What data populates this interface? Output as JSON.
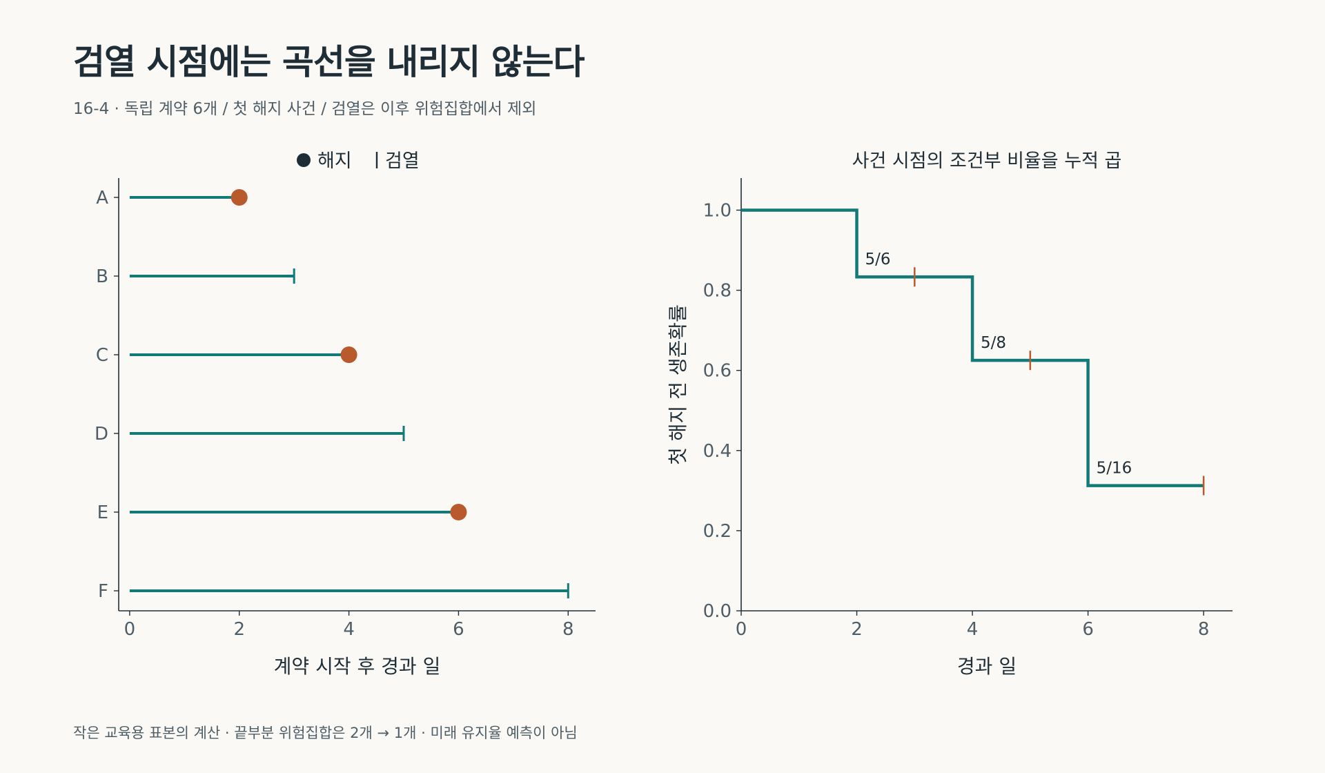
{
  "title": "검열 시점에는 곡선을 내리지 않는다",
  "subtitle": "16-4 · 독립 계약 6개 / 첫 해지 사건 / 검열은 이후 위험집합에서 제외",
  "footnote": "작은 교육용 표본의 계산 · 끝부분 위험집합은 2개 → 1개 · 미래 유지율 예측이 아님",
  "colors": {
    "line": "#137a78",
    "event": "#b85a2c",
    "text": "#1f2d36",
    "muted": "#4f5d66",
    "background": "#faf9f6"
  },
  "chart_data": [
    {
      "type": "timeline",
      "title": "",
      "legend": {
        "position": "top",
        "items": [
          {
            "label": "해지",
            "marker": "circle"
          },
          {
            "label": "검열",
            "marker": "tick"
          }
        ]
      },
      "xlabel": "계약 시작 후 경과 일",
      "ylabel": "",
      "xlim": [
        -0.2,
        8.5
      ],
      "xticks": [
        0,
        2,
        4,
        6,
        8
      ],
      "subjects": [
        {
          "id": "A",
          "end": 2,
          "status": "해지"
        },
        {
          "id": "B",
          "end": 3,
          "status": "검열"
        },
        {
          "id": "C",
          "end": 4,
          "status": "해지"
        },
        {
          "id": "D",
          "end": 5,
          "status": "검열"
        },
        {
          "id": "E",
          "end": 6,
          "status": "해지"
        },
        {
          "id": "F",
          "end": 8,
          "status": "검열"
        }
      ]
    },
    {
      "type": "line",
      "step": true,
      "title": "사건 시점의 조건부 비율을 누적 곱",
      "xlabel": "경과 일",
      "ylabel": "첫 해지 전 생존확률",
      "xlim": [
        0,
        8.5
      ],
      "ylim": [
        0,
        1.08
      ],
      "xticks": [
        0,
        2,
        4,
        6,
        8
      ],
      "yticks": [
        "0.0",
        "0.2",
        "0.4",
        "0.6",
        "0.8",
        "1.0"
      ],
      "steps": [
        {
          "x": 0,
          "y": 1.0
        },
        {
          "x": 2,
          "y": 0.8333
        },
        {
          "x": 4,
          "y": 0.625
        },
        {
          "x": 6,
          "y": 0.3125
        },
        {
          "x": 8,
          "y": 0.3125
        }
      ],
      "censor_marks": [
        {
          "x": 3,
          "y": 0.8333
        },
        {
          "x": 5,
          "y": 0.625
        },
        {
          "x": 8,
          "y": 0.3125
        }
      ],
      "annotations": [
        {
          "x": 2,
          "y": 0.8333,
          "text": "5/6"
        },
        {
          "x": 4,
          "y": 0.625,
          "text": "5/8"
        },
        {
          "x": 6,
          "y": 0.3125,
          "text": "5/16"
        }
      ]
    }
  ]
}
